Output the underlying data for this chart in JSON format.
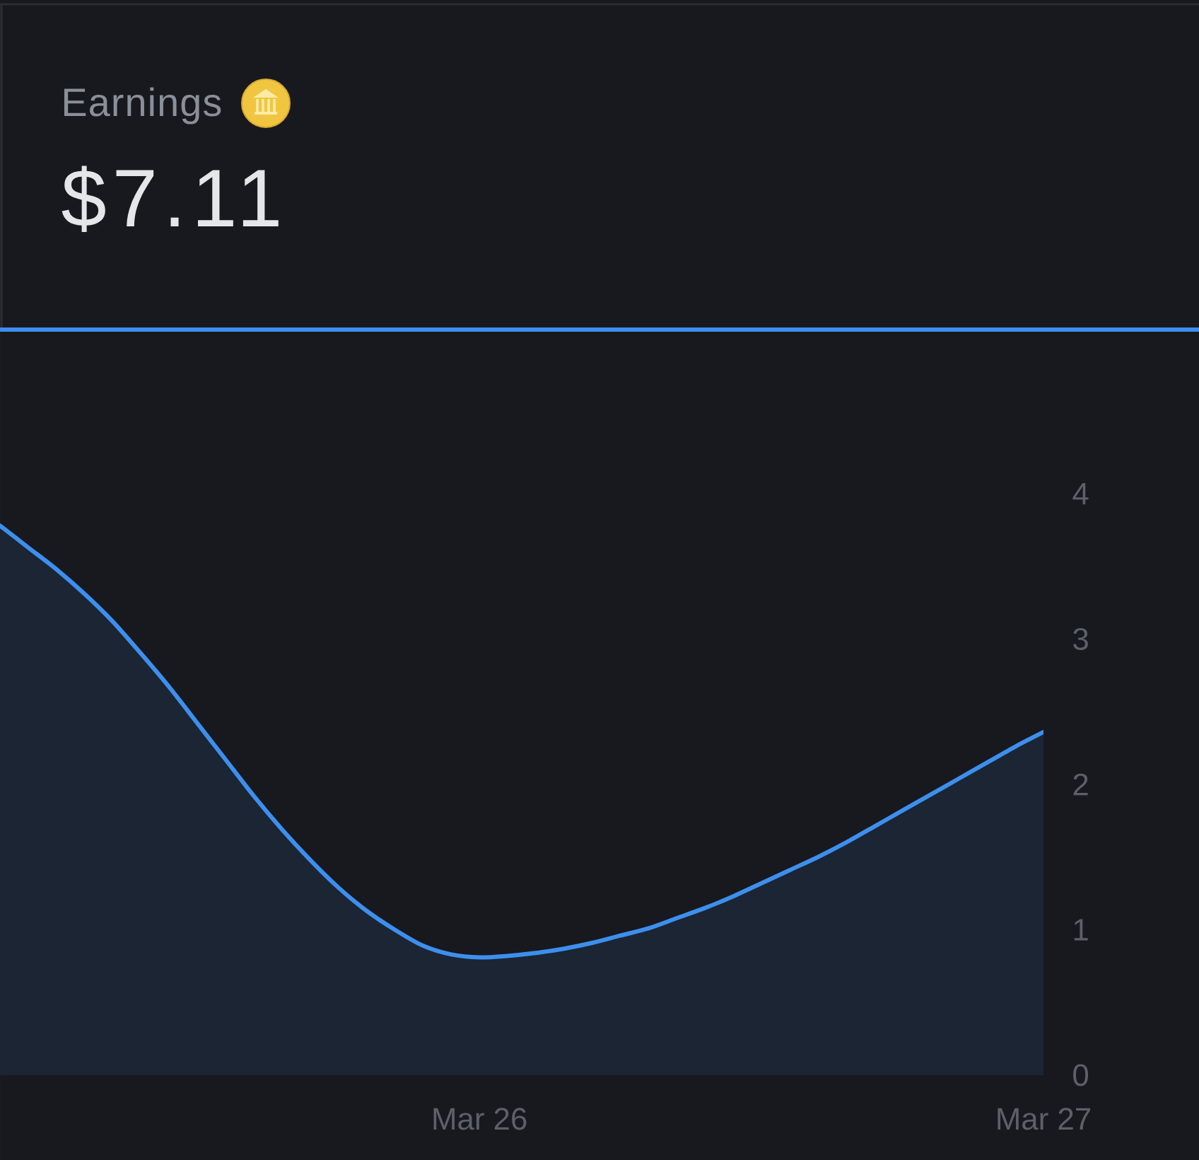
{
  "chart_data": {
    "type": "area",
    "title": "Earnings",
    "subtitle": "$7.11",
    "categories": [
      null,
      null,
      null,
      null,
      null,
      null,
      null,
      null,
      null,
      null,
      null,
      null,
      null,
      null,
      null,
      null,
      null,
      "Mar 26",
      null,
      null,
      null,
      null,
      null,
      null,
      null,
      null,
      null,
      null,
      null,
      null,
      null,
      null,
      null,
      null,
      null,
      null,
      null,
      "Mar 27"
    ],
    "values": [
      3.78,
      3.63,
      3.48,
      3.31,
      3.12,
      2.9,
      2.67,
      2.42,
      2.17,
      1.92,
      1.69,
      1.48,
      1.29,
      1.13,
      1.0,
      0.89,
      0.83,
      0.81,
      0.82,
      0.84,
      0.87,
      0.91,
      0.96,
      1.01,
      1.08,
      1.15,
      1.23,
      1.32,
      1.41,
      1.5,
      1.6,
      1.71,
      1.82,
      1.93,
      2.04,
      2.15,
      2.26,
      2.36
    ],
    "color": "#3d8fee",
    "ylim": [
      0,
      4
    ],
    "yticks": [
      0,
      1,
      2,
      3,
      4
    ]
  }
}
